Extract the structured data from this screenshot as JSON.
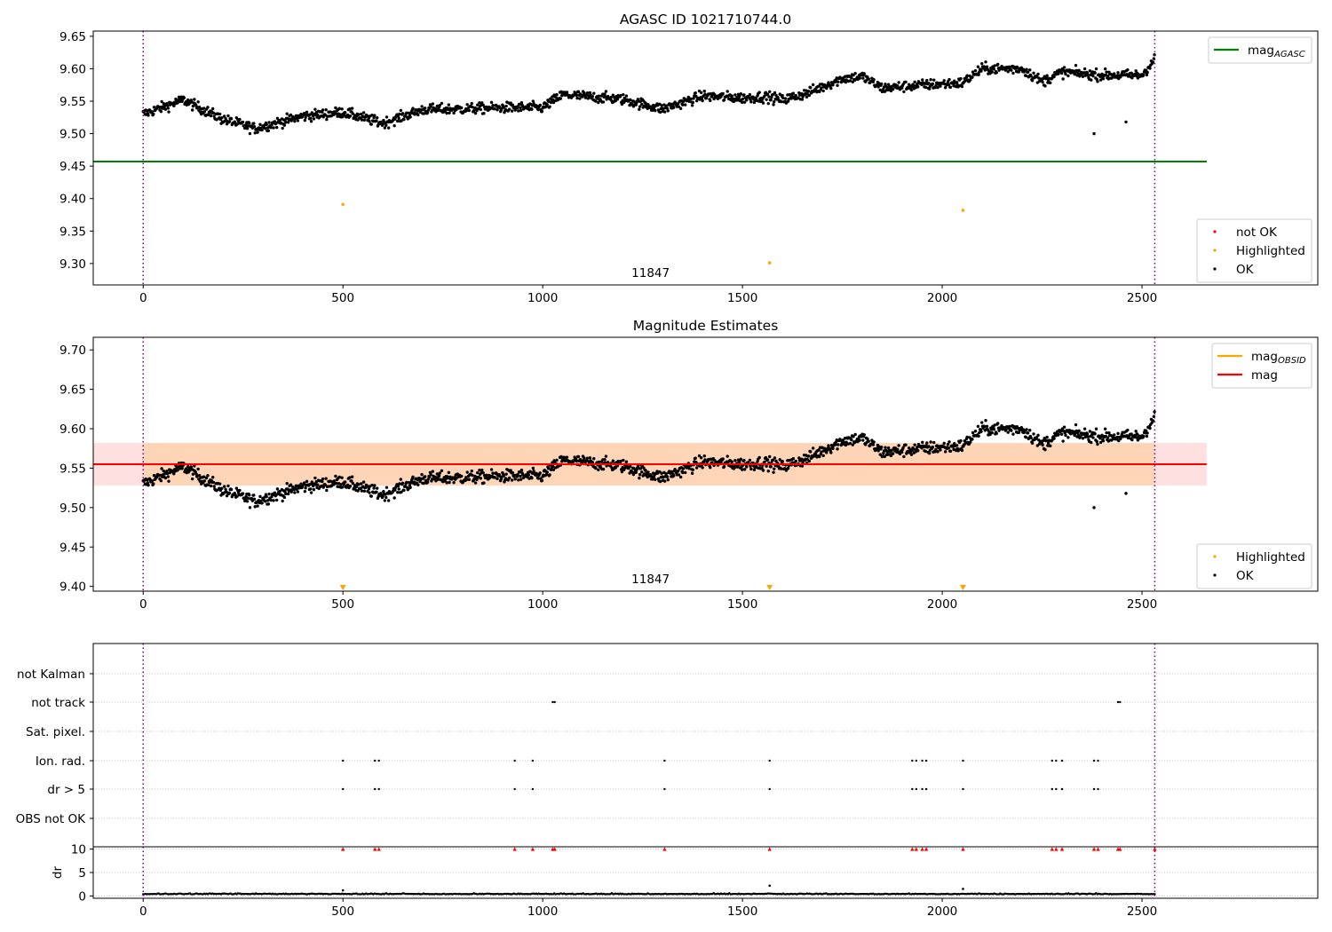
{
  "figure": {
    "title": "AGASC ID 1021710744.0"
  },
  "chart_data": [
    {
      "type": "scatter",
      "title": "AGASC ID 1021710744.0",
      "xlim": [
        -125,
        2940
      ],
      "ylim": [
        9.267,
        9.658
      ],
      "x_ticks": [
        0,
        500,
        1000,
        1500,
        2000,
        2500
      ],
      "y_ticks": [
        9.3,
        9.35,
        9.4,
        9.45,
        9.5,
        9.55,
        9.6,
        9.65
      ],
      "y_tick_labels": [
        "9.30",
        "9.35",
        "9.40",
        "9.45",
        "9.50",
        "9.55",
        "9.60",
        "9.65"
      ],
      "obs_label": "11847",
      "obs_label_x": 1270,
      "obs_boundaries": [
        0,
        2532
      ],
      "mag_agasc": 9.457,
      "mag_agasc_xrange": [
        -125,
        2662
      ],
      "ok_trend": [
        [
          0,
          9.53
        ],
        [
          100,
          9.552
        ],
        [
          200,
          9.522
        ],
        [
          280,
          9.508
        ],
        [
          400,
          9.527
        ],
        [
          500,
          9.533
        ],
        [
          600,
          9.516
        ],
        [
          700,
          9.537
        ],
        [
          800,
          9.538
        ],
        [
          900,
          9.54
        ],
        [
          1000,
          9.54
        ],
        [
          1050,
          9.56
        ],
        [
          1200,
          9.553
        ],
        [
          1300,
          9.538
        ],
        [
          1400,
          9.558
        ],
        [
          1500,
          9.555
        ],
        [
          1560,
          9.557
        ],
        [
          1600,
          9.552
        ],
        [
          1660,
          9.562
        ],
        [
          1750,
          9.585
        ],
        [
          1800,
          9.588
        ],
        [
          1850,
          9.57
        ],
        [
          1950,
          9.575
        ],
        [
          2050,
          9.578
        ],
        [
          2100,
          9.6
        ],
        [
          2200,
          9.6
        ],
        [
          2250,
          9.58
        ],
        [
          2300,
          9.595
        ],
        [
          2400,
          9.59
        ],
        [
          2500,
          9.59
        ],
        [
          2532,
          9.615
        ]
      ],
      "ok_noise": 0.008,
      "ok_outliers": [
        [
          2380,
          9.5
        ],
        [
          2460,
          9.518
        ]
      ],
      "highlighted": [
        [
          500,
          9.391
        ],
        [
          1568,
          9.301
        ],
        [
          2052,
          9.382
        ]
      ],
      "not_ok": [],
      "legend_upper": [
        {
          "label": "mag",
          "subscript": "AGASC",
          "color": "#008000",
          "kind": "line"
        }
      ],
      "legend_lower": [
        {
          "label": "not OK",
          "color": "#ff0000",
          "kind": "dot"
        },
        {
          "label": "Highlighted",
          "color": "#ffa500",
          "kind": "dot"
        },
        {
          "label": "OK",
          "color": "#000000",
          "kind": "dot"
        }
      ]
    },
    {
      "type": "scatter",
      "title": "Magnitude Estimates",
      "xlim": [
        -125,
        2940
      ],
      "ylim": [
        9.394,
        9.716
      ],
      "x_ticks": [
        0,
        500,
        1000,
        1500,
        2000,
        2500
      ],
      "y_ticks": [
        9.4,
        9.45,
        9.5,
        9.55,
        9.6,
        9.65,
        9.7
      ],
      "y_tick_labels": [
        "9.40",
        "9.45",
        "9.50",
        "9.55",
        "9.60",
        "9.65",
        "9.70"
      ],
      "obs_label": "11847",
      "obs_label_x": 1270,
      "obs_boundaries": [
        0,
        2532
      ],
      "mag": 9.555,
      "mag_band": [
        9.528,
        9.582
      ],
      "mag_obsid": 9.555,
      "mag_obsid_band": [
        9.528,
        9.582
      ],
      "band_xrange": [
        -125,
        2662
      ],
      "obsid_band_xrange": [
        0,
        2532
      ],
      "highlighted_markers": [
        500,
        1568,
        2052
      ],
      "legend_upper": [
        {
          "label": "mag",
          "subscript": "OBSID",
          "color": "#ffa500",
          "kind": "line"
        },
        {
          "label": "mag",
          "subscript": "",
          "color": "#ff0000",
          "kind": "line"
        }
      ],
      "legend_lower": [
        {
          "label": "Highlighted",
          "color": "#ffa500",
          "kind": "dot"
        },
        {
          "label": "OK",
          "color": "#000000",
          "kind": "dot"
        }
      ]
    },
    {
      "type": "scatter",
      "title": "",
      "xlim": [
        -125,
        2940
      ],
      "x_ticks": [
        0,
        500,
        1000,
        1500,
        2000,
        2500
      ],
      "flag_labels": [
        "not Kalman",
        "not track",
        "Sat. pixel.",
        "Ion. rad.",
        "dr > 5",
        "OBS not OK"
      ],
      "flags": {
        "not Kalman": [],
        "not track": [
          1025,
          1030,
          2440,
          2445
        ],
        "Sat. pixel.": [],
        "Ion. rad.": [
          500,
          580,
          590,
          930,
          975,
          1305,
          1568,
          1925,
          1935,
          1950,
          1960,
          2052,
          2275,
          2285,
          2300,
          2380,
          2390
        ],
        "dr > 5": [
          500,
          580,
          590,
          930,
          975,
          1305,
          1568,
          1925,
          1935,
          1950,
          1960,
          2052,
          2275,
          2285,
          2300,
          2380,
          2390
        ],
        "OBS not OK": []
      }
    },
    {
      "type": "scatter",
      "title": "",
      "ylabel": "dr",
      "xlim": [
        -125,
        2940
      ],
      "ylim": [
        -0.5,
        10.5
      ],
      "x_ticks": [
        0,
        500,
        1000,
        1500,
        2000,
        2500
      ],
      "y_ticks": [
        0,
        5,
        10
      ],
      "y_tick_labels": [
        "0",
        "5",
        "10"
      ],
      "dr_baseline": 0.35,
      "dr_outliers": [
        [
          500,
          1.2
        ],
        [
          1568,
          2.2
        ],
        [
          2052,
          1.5
        ]
      ],
      "dr_clipped": [
        500,
        580,
        590,
        930,
        975,
        1025,
        1030,
        1305,
        1568,
        1925,
        1935,
        1950,
        1960,
        2052,
        2275,
        2285,
        2300,
        2380,
        2390,
        2440,
        2445,
        2532
      ]
    }
  ]
}
